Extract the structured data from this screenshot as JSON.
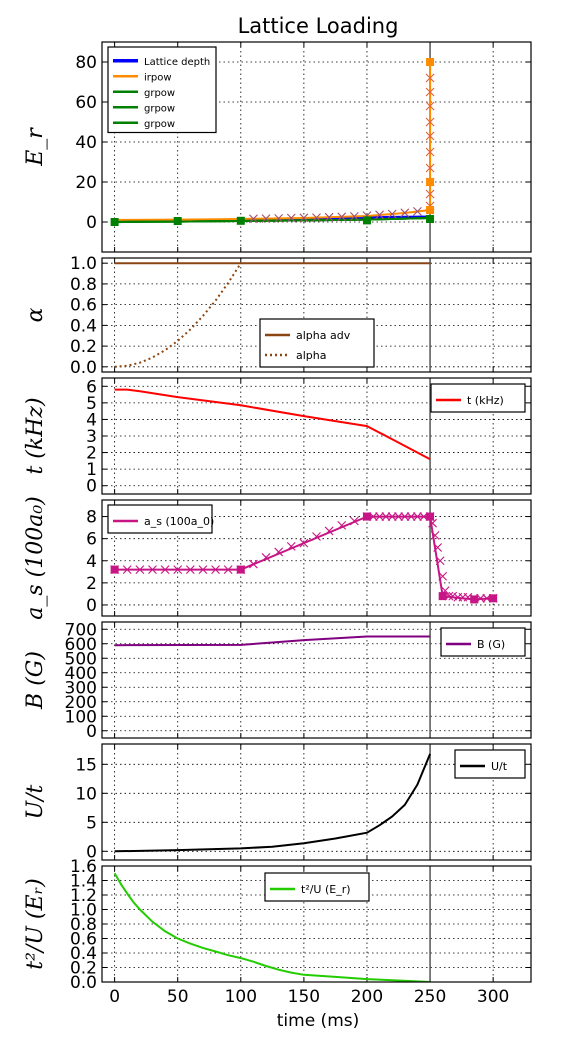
{
  "title": "Lattice Loading",
  "xlabel": "time (ms)",
  "x_ticks": [
    "0",
    "50",
    "100",
    "150",
    "200",
    "250",
    "300"
  ],
  "xlim": [
    -10,
    330
  ],
  "vline_x": 250,
  "chart_data": [
    {
      "type": "line",
      "ylabel": "E_r",
      "ylim": [
        -15,
        90
      ],
      "y_ticks": [
        0,
        20,
        40,
        60,
        80
      ],
      "grid": true,
      "legend_position": "top-left",
      "series": [
        {
          "name": "Lattice depth",
          "color": "#0000ff",
          "x": [
            0,
            50,
            100,
            150,
            200,
            250
          ],
          "y": [
            0,
            0.8,
            1.2,
            1.6,
            2.3,
            2.6
          ]
        },
        {
          "name": "irpow",
          "color": "#ff8c00",
          "x": [
            0,
            50,
            100,
            150,
            200,
            230,
            250,
            250,
            250
          ],
          "y": [
            1,
            1.2,
            1.5,
            2,
            3,
            4.5,
            6,
            20,
            80
          ]
        },
        {
          "name": "grpow",
          "color": "#008000",
          "x": [
            0,
            50,
            100,
            150,
            200,
            250
          ],
          "y": [
            0,
            0.2,
            0.5,
            0.8,
            1.2,
            2
          ]
        },
        {
          "name": "grpow",
          "color": "#008000",
          "x": [
            0,
            50,
            100,
            150,
            200,
            250
          ],
          "y": [
            0,
            0.2,
            0.5,
            0.8,
            1.2,
            2
          ]
        },
        {
          "name": "grpow",
          "color": "#008000",
          "x": [
            0,
            50,
            100,
            150,
            200,
            250
          ],
          "y": [
            0,
            0.2,
            0.5,
            0.8,
            1.2,
            2
          ]
        }
      ],
      "markers": [
        {
          "color": "#e0603a",
          "x": [
            250,
            250,
            250,
            250,
            250,
            250,
            250,
            250,
            250,
            250
          ],
          "y": [
            72,
            65,
            58,
            50,
            43,
            35,
            27,
            20,
            14,
            8
          ]
        },
        {
          "color": "#a05070",
          "x": [
            110,
            120,
            130,
            140,
            150,
            160,
            170,
            180,
            190,
            200,
            210,
            220,
            230,
            240
          ],
          "y": [
            1.6,
            1.7,
            1.8,
            2,
            2.1,
            2.2,
            2.4,
            2.6,
            2.8,
            3.2,
            3.6,
            4,
            4.6,
            5.3
          ]
        }
      ]
    },
    {
      "type": "line",
      "ylabel": "α",
      "ylim": [
        -0.05,
        1.05
      ],
      "y_ticks": [
        "0.0",
        "0.2",
        "0.4",
        "0.6",
        "0.8",
        "1.0"
      ],
      "grid": true,
      "legend_position": "lower-center",
      "series": [
        {
          "name": "alpha adv",
          "color": "#8b4513",
          "style": "solid",
          "x": [
            0,
            250
          ],
          "y": [
            1,
            1
          ]
        },
        {
          "name": "alpha",
          "color": "#8b4513",
          "style": "dotted",
          "x": [
            0,
            10,
            20,
            30,
            40,
            50,
            60,
            70,
            80,
            90,
            100
          ],
          "y": [
            0,
            0.01,
            0.04,
            0.09,
            0.16,
            0.25,
            0.36,
            0.49,
            0.64,
            0.81,
            1.0
          ]
        }
      ]
    },
    {
      "type": "line",
      "ylabel": "t (kHz)",
      "ylim": [
        -0.5,
        6.5
      ],
      "y_ticks": [
        0,
        1,
        2,
        3,
        4,
        5,
        6
      ],
      "grid": true,
      "legend_position": "top-right",
      "series": [
        {
          "name": "t (kHz)",
          "color": "#ff0000",
          "x": [
            0,
            10,
            20,
            50,
            100,
            150,
            200,
            210,
            220,
            250
          ],
          "y": [
            5.8,
            5.8,
            5.7,
            5.35,
            4.85,
            4.2,
            3.6,
            3.2,
            2.8,
            1.6
          ]
        }
      ]
    },
    {
      "type": "line",
      "ylabel": "a_s (100a_0)",
      "ylim": [
        -1,
        9.5
      ],
      "y_ticks": [
        0,
        2,
        4,
        6,
        8
      ],
      "grid": true,
      "legend_position": "top-left",
      "series": [
        {
          "name": "a_s (100a_0)",
          "color": "#c71585",
          "x": [
            0,
            100,
            200,
            250,
            260,
            275,
            285,
            300
          ],
          "y": [
            3.2,
            3.2,
            8,
            8,
            0.8,
            0.6,
            0.5,
            0.6
          ]
        }
      ],
      "markers": [
        {
          "color": "#c71585",
          "x": [
            0,
            10,
            20,
            30,
            40,
            50,
            60,
            70,
            80,
            90,
            100,
            110,
            120,
            130,
            140,
            150,
            160,
            170,
            180,
            190,
            200,
            205,
            210,
            215,
            220,
            225,
            230,
            235,
            240,
            245,
            250,
            252,
            254,
            256,
            258,
            260,
            262,
            265,
            268,
            272,
            276,
            280,
            285,
            290,
            295,
            300
          ],
          "y": [
            3.2,
            3.2,
            3.2,
            3.2,
            3.2,
            3.2,
            3.2,
            3.2,
            3.2,
            3.2,
            3.2,
            3.7,
            4.3,
            4.8,
            5.3,
            5.6,
            6.2,
            6.7,
            7.2,
            7.6,
            8,
            8,
            8,
            8,
            8,
            8,
            8,
            8,
            8,
            8,
            8,
            7.4,
            6.3,
            5.2,
            4,
            2.6,
            1.3,
            0.8,
            0.8,
            0.7,
            0.7,
            0.7,
            0.6,
            0.6,
            0.6,
            0.6
          ]
        }
      ],
      "square_markers": {
        "x": [
          0,
          100,
          200,
          250,
          260,
          285,
          300
        ],
        "y": [
          3.2,
          3.2,
          8,
          8,
          0.8,
          0.5,
          0.6
        ]
      }
    },
    {
      "type": "line",
      "ylabel": "B (G)",
      "ylim": [
        -50,
        750
      ],
      "y_ticks": [
        0,
        100,
        200,
        300,
        400,
        500,
        600,
        700
      ],
      "grid": true,
      "legend_position": "top-right",
      "series": [
        {
          "name": "B (G)",
          "color": "#800080",
          "x": [
            0,
            100,
            150,
            200,
            250
          ],
          "y": [
            590,
            592,
            625,
            650,
            650
          ]
        }
      ]
    },
    {
      "type": "line",
      "ylabel": "U/t",
      "ylim": [
        -1.5,
        18.5
      ],
      "y_ticks": [
        0,
        5,
        10,
        15
      ],
      "grid": true,
      "legend_position": "top-right",
      "series": [
        {
          "name": "U/t",
          "color": "#000000",
          "x": [
            0,
            50,
            100,
            125,
            150,
            175,
            200,
            210,
            220,
            230,
            240,
            250
          ],
          "y": [
            0,
            0.2,
            0.5,
            0.8,
            1.4,
            2.2,
            3.2,
            4.5,
            6,
            8,
            11.5,
            16.8
          ]
        }
      ]
    },
    {
      "type": "line",
      "ylabel": "t²/U (E_r)",
      "ylim": [
        0,
        1.6
      ],
      "y_ticks": [
        "0.0",
        "0.2",
        "0.4",
        "0.6",
        "0.8",
        "1.0",
        "1.2",
        "1.4",
        "1.6"
      ],
      "grid": true,
      "legend_position": "top-center",
      "series": [
        {
          "name": "t²/U (E_r)",
          "color": "#22cc00",
          "x": [
            0,
            5,
            10,
            15,
            20,
            30,
            40,
            50,
            60,
            70,
            80,
            90,
            100,
            110,
            120,
            130,
            140,
            150,
            175,
            200,
            225,
            250
          ],
          "y": [
            1.5,
            1.35,
            1.22,
            1.1,
            1.0,
            0.83,
            0.7,
            0.6,
            0.53,
            0.47,
            0.42,
            0.37,
            0.33,
            0.28,
            0.22,
            0.17,
            0.13,
            0.1,
            0.07,
            0.04,
            0.02,
            0.0
          ]
        }
      ]
    }
  ]
}
